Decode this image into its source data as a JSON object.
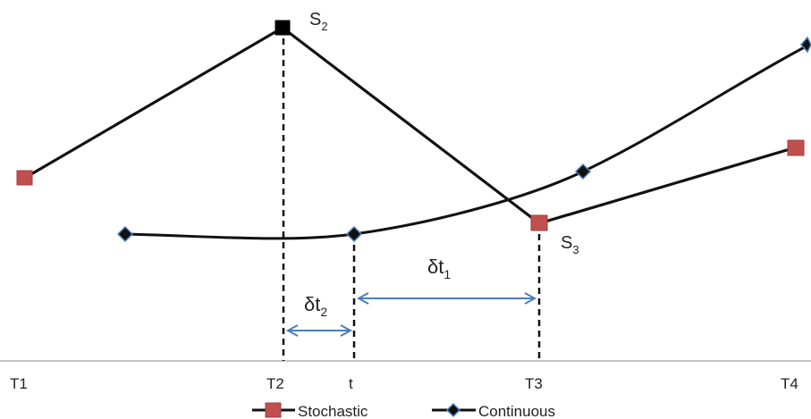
{
  "colors": {
    "line": "#111111",
    "stochastic_marker": "#c0504d",
    "stochastic_border": "#a33c39",
    "continuous_marker": "#111111",
    "continuous_border": "#4f81bd",
    "arrow": "#4a7ebb",
    "axis": "#b0b0b0"
  },
  "axis_labels": {
    "t1": "T1",
    "t2": "T2",
    "t": "t",
    "t3": "T3",
    "t4": "T4"
  },
  "point_labels": {
    "s2_main": "S",
    "s2_sub": "2",
    "s3_main": "S",
    "s3_sub": "3"
  },
  "intervals": {
    "dt1_main": "δt",
    "dt1_sub": "1",
    "dt2_main": "δt",
    "dt2_sub": "2"
  },
  "legend": {
    "stochastic": "Stochastic",
    "continuous": "Continuous"
  }
}
